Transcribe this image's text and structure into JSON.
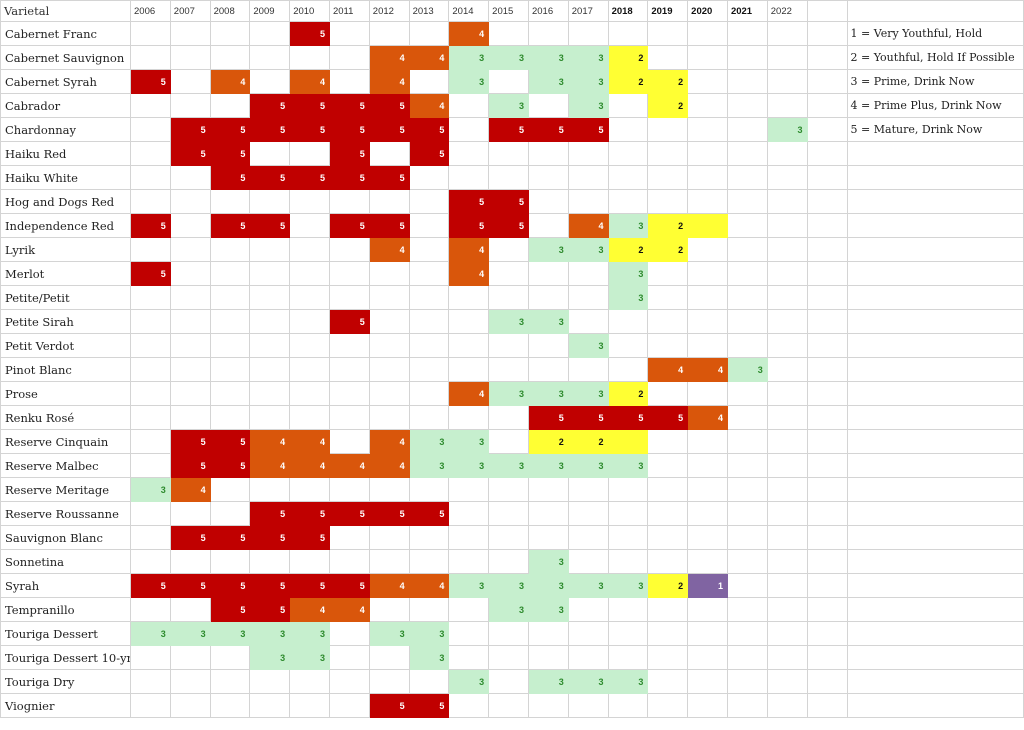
{
  "header": {
    "varietal": "Varietal",
    "years": [
      "2006",
      "2007",
      "2008",
      "2009",
      "2010",
      "2011",
      "2012",
      "2013",
      "2014",
      "2015",
      "2016",
      "2017",
      "2018",
      "2019",
      "2020",
      "2021",
      "2022"
    ],
    "bold_years": [
      "2018",
      "2019",
      "2020",
      "2021"
    ]
  },
  "legend": [
    "1 = Very Youthful, Hold",
    "2 = Youthful, Hold If Possible",
    "3 = Prime, Drink Now",
    "4 = Prime Plus, Drink Now",
    "5 = Mature, Drink Now"
  ],
  "colors": {
    "1": "#8064a2",
    "2": "#ffff33",
    "3": "#c6efce",
    "4": "#d9560b",
    "5": "#c00000"
  },
  "rows": [
    {
      "name": "Cabernet Franc",
      "cells": {
        "2010": 5,
        "2014": 4
      }
    },
    {
      "name": "Cabernet Sauvignon",
      "cells": {
        "2012": 4,
        "2013": 4,
        "2014": 3,
        "2015": 3,
        "2016": 3,
        "2017": 3,
        "2018": 2
      }
    },
    {
      "name": "Cabernet Syrah",
      "cells": {
        "2006": 5,
        "2008": 4,
        "2010": 4,
        "2012": 4,
        "2014": 3,
        "2016": 3,
        "2017": 3,
        "2018": 2,
        "2019": 2
      }
    },
    {
      "name": "Cabrador",
      "cells": {
        "2009": 5,
        "2010": 5,
        "2011": 5,
        "2012": 5,
        "2013": 4,
        "2015": 3,
        "2017": 3,
        "2019": 2
      }
    },
    {
      "name": "Chardonnay",
      "cells": {
        "2007": 5,
        "2008": 5,
        "2009": 5,
        "2010": 5,
        "2011": 5,
        "2012": 5,
        "2013": 5,
        "2015": 5,
        "2016": 5,
        "2017": 5,
        "2022": 3
      }
    },
    {
      "name": "Haiku Red",
      "cells": {
        "2007": 5,
        "2008": 5,
        "2011": 5,
        "2013": 5
      }
    },
    {
      "name": "Haiku White",
      "cells": {
        "2008": 5,
        "2009": 5,
        "2010": 5,
        "2011": 5,
        "2012": 5
      }
    },
    {
      "name": "Hog and Dogs Red",
      "cells": {
        "2014": 5,
        "2015": 5
      }
    },
    {
      "name": "Independence Red",
      "cells": {
        "2006": 5,
        "2008": 5,
        "2009": 5,
        "2011": 5,
        "2012": 5,
        "2014": 5,
        "2015": 5,
        "2017": 4,
        "2018": 3,
        "2019": 2
      },
      "blank_fill": {
        "2020": 2
      }
    },
    {
      "name": "Lyrik",
      "cells": {
        "2012": 4,
        "2014": 4,
        "2016": 3,
        "2017": 3,
        "2018": 2,
        "2019": 2
      }
    },
    {
      "name": "Merlot",
      "cells": {
        "2006": 5,
        "2014": 4,
        "2018": 3
      }
    },
    {
      "name": "Petite/Petit",
      "cells": {
        "2018": 3
      }
    },
    {
      "name": "Petite Sirah",
      "cells": {
        "2011": 5,
        "2015": 3,
        "2016": 3
      }
    },
    {
      "name": "Petit Verdot",
      "cells": {
        "2017": 3
      }
    },
    {
      "name": "Pinot Blanc",
      "cells": {
        "2019": 4,
        "2020": 4,
        "2021": 3
      }
    },
    {
      "name": "Prose",
      "cells": {
        "2014": 4,
        "2015": 3,
        "2016": 3,
        "2017": 3,
        "2018": 2
      }
    },
    {
      "name": "Renku Rosé",
      "cells": {
        "2016": 5,
        "2017": 5,
        "2018": 5,
        "2019": 5,
        "2020": 4
      }
    },
    {
      "name": "Reserve Cinquain",
      "cells": {
        "2007": 5,
        "2008": 5,
        "2009": 4,
        "2010": 4,
        "2012": 4,
        "2013": 3,
        "2014": 3,
        "2016": 2,
        "2017": 2
      },
      "blank_fill": {
        "2018": 2
      }
    },
    {
      "name": "Reserve Malbec",
      "cells": {
        "2007": 5,
        "2008": 5,
        "2009": 4,
        "2010": 4,
        "2011": 4,
        "2012": 4,
        "2013": 3,
        "2014": 3,
        "2015": 3,
        "2016": 3,
        "2017": 3,
        "2018": 3
      }
    },
    {
      "name": "Reserve Meritage",
      "cells": {
        "2006": 3,
        "2007": 4
      }
    },
    {
      "name": "Reserve Roussanne",
      "cells": {
        "2009": 5,
        "2010": 5,
        "2011": 5,
        "2012": 5,
        "2013": 5
      }
    },
    {
      "name": "Sauvignon Blanc",
      "cells": {
        "2007": 5,
        "2008": 5,
        "2009": 5,
        "2010": 5
      }
    },
    {
      "name": "Sonnetina",
      "cells": {
        "2016": 3
      }
    },
    {
      "name": "Syrah",
      "cells": {
        "2006": 5,
        "2007": 5,
        "2008": 5,
        "2009": 5,
        "2010": 5,
        "2011": 5,
        "2012": 4,
        "2013": 4,
        "2014": 3,
        "2015": 3,
        "2016": 3,
        "2017": 3,
        "2018": 3,
        "2019": 2,
        "2020": 1
      }
    },
    {
      "name": "Tempranillo",
      "cells": {
        "2008": 5,
        "2009": 5,
        "2010": 4,
        "2011": 4,
        "2015": 3,
        "2016": 3
      }
    },
    {
      "name": "Touriga Dessert",
      "cells": {
        "2006": 3,
        "2007": 3,
        "2008": 3,
        "2009": 3,
        "2010": 3,
        "2012": 3,
        "2013": 3
      }
    },
    {
      "name": "Touriga Dessert 10-yr",
      "cells": {
        "2009": 3,
        "2010": 3,
        "2013": 3
      }
    },
    {
      "name": "Touriga Dry",
      "cells": {
        "2014": 3,
        "2016": 3,
        "2017": 3,
        "2018": 3
      }
    },
    {
      "name": "Viognier",
      "cells": {
        "2012": 5,
        "2013": 5
      }
    }
  ]
}
